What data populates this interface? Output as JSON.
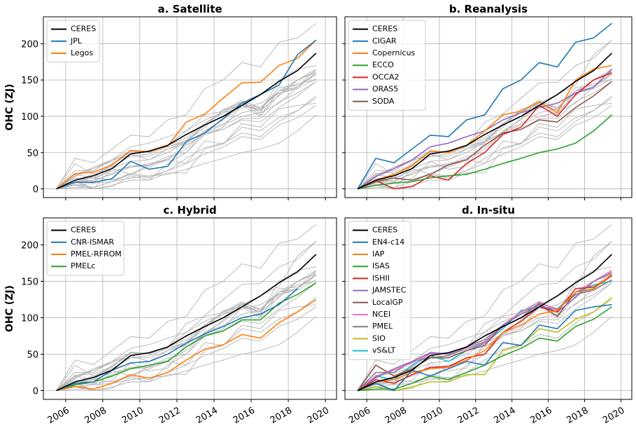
{
  "chart_data": [
    {
      "type": "line",
      "title": "a. Satellite",
      "ylabel": "OHC (ZJ)",
      "show_ytick_labels": true,
      "show_xtick_labels": false,
      "x": [
        2005.5,
        2006.5,
        2007.5,
        2008.5,
        2009.5,
        2010.5,
        2011.5,
        2012.5,
        2013.5,
        2014.5,
        2015.5,
        2016.5,
        2017.5,
        2018.5,
        2019.5
      ],
      "xlim": [
        2004.8,
        2020.6
      ],
      "ylim": [
        -12,
        237
      ],
      "xticks": [
        2006,
        2008,
        2010,
        2012,
        2014,
        2016,
        2018,
        2020
      ],
      "yticks": [
        0,
        50,
        100,
        150,
        200
      ],
      "grid": true,
      "legend": "upper left",
      "context_color": "#b4b4b4",
      "series": [
        {
          "name": "CERES",
          "color": "#000000",
          "values": [
            0,
            12,
            18,
            28,
            48,
            52,
            60,
            75,
            88,
            100,
            115,
            130,
            148,
            163,
            187
          ]
        },
        {
          "name": "JPL",
          "color": "#1f77b4",
          "values": [
            0,
            9,
            9,
            14,
            38,
            27,
            31,
            65,
            77,
            97,
            118,
            130,
            143,
            185,
            205
          ]
        },
        {
          "name": "Legos",
          "color": "#ff7f0e",
          "values": [
            0,
            21,
            23,
            33,
            53,
            51,
            59,
            92,
            103,
            125,
            146,
            147,
            170,
            180,
            205
          ]
        }
      ]
    },
    {
      "type": "line",
      "title": "b. Reanalysis",
      "show_ytick_labels": false,
      "show_xtick_labels": false,
      "x": [
        2005.5,
        2006.5,
        2007.5,
        2008.5,
        2009.5,
        2010.5,
        2011.5,
        2012.5,
        2013.5,
        2014.5,
        2015.5,
        2016.5,
        2017.5,
        2018.5,
        2019.5
      ],
      "xlim": [
        2004.8,
        2020.6
      ],
      "ylim": [
        -12,
        237
      ],
      "xticks": [
        2006,
        2008,
        2010,
        2012,
        2014,
        2016,
        2018,
        2020
      ],
      "yticks": [
        0,
        50,
        100,
        150,
        200
      ],
      "grid": true,
      "legend": "upper left",
      "context_color": "#b4b4b4",
      "series": [
        {
          "name": "CERES",
          "color": "#000000",
          "values": [
            0,
            12,
            18,
            28,
            48,
            52,
            60,
            75,
            88,
            100,
            115,
            130,
            148,
            163,
            187
          ]
        },
        {
          "name": "CIGAR",
          "color": "#1f77b4",
          "values": [
            0,
            42,
            36,
            55,
            74,
            72,
            95,
            102,
            138,
            150,
            174,
            168,
            202,
            208,
            228
          ]
        },
        {
          "name": "Copernicus",
          "color": "#ff7f0e",
          "values": [
            0,
            12,
            20,
            32,
            52,
            50,
            60,
            80,
            102,
            107,
            120,
            105,
            150,
            165,
            170
          ]
        },
        {
          "name": "ECCO",
          "color": "#2ca02c",
          "values": [
            0,
            5,
            8,
            10,
            15,
            18,
            20,
            27,
            35,
            42,
            50,
            55,
            63,
            80,
            102
          ]
        },
        {
          "name": "OCCA2",
          "color": "#d62728",
          "values": [
            0,
            12,
            0,
            3,
            18,
            12,
            35,
            50,
            75,
            85,
            115,
            100,
            130,
            150,
            160
          ]
        },
        {
          "name": "ORAS5",
          "color": "#9467bd",
          "values": [
            0,
            17,
            28,
            40,
            58,
            63,
            72,
            80,
            95,
            105,
            112,
            118,
            132,
            140,
            165
          ]
        },
        {
          "name": "SODA",
          "color": "#8c564b",
          "values": [
            0,
            10,
            15,
            12,
            20,
            33,
            40,
            60,
            77,
            82,
            95,
            92,
            112,
            128,
            148
          ]
        }
      ]
    },
    {
      "type": "line",
      "title": "c. Hybrid",
      "ylabel": "OHC (ZJ)",
      "show_ytick_labels": true,
      "show_xtick_labels": true,
      "x": [
        2005.5,
        2006.5,
        2007.5,
        2008.5,
        2009.5,
        2010.5,
        2011.5,
        2012.5,
        2013.5,
        2014.5,
        2015.5,
        2016.5,
        2017.5,
        2018.5,
        2019.5
      ],
      "xlim": [
        2004.8,
        2020.6
      ],
      "ylim": [
        -12,
        237
      ],
      "xticks": [
        2006,
        2008,
        2010,
        2012,
        2014,
        2016,
        2018,
        2020
      ],
      "yticks": [
        0,
        50,
        100,
        150,
        200
      ],
      "grid": true,
      "legend": "upper left",
      "context_color": "#b4b4b4",
      "series": [
        {
          "name": "CERES",
          "color": "#000000",
          "values": [
            0,
            12,
            18,
            28,
            48,
            52,
            60,
            75,
            88,
            100,
            115,
            130,
            148,
            163,
            187
          ]
        },
        {
          "name": "CNR-ISMAR",
          "color": "#1f77b4",
          "values": [
            0,
            10,
            12,
            28,
            38,
            40,
            50,
            65,
            78,
            88,
            100,
            105,
            118,
            140,
            null
          ]
        },
        {
          "name": "PMEL-RFROM",
          "color": "#ff7f0e",
          "values": [
            0,
            6,
            2,
            10,
            22,
            17,
            25,
            42,
            57,
            63,
            77,
            72,
            93,
            108,
            125
          ]
        },
        {
          "name": "PMELc",
          "color": "#2ca02c",
          "values": [
            0,
            8,
            12,
            20,
            30,
            35,
            40,
            60,
            75,
            82,
            97,
            97,
            120,
            132,
            148
          ]
        }
      ]
    },
    {
      "type": "line",
      "title": "d. In-situ",
      "show_ytick_labels": false,
      "show_xtick_labels": true,
      "x": [
        2005.5,
        2006.5,
        2007.5,
        2008.5,
        2009.5,
        2010.5,
        2011.5,
        2012.5,
        2013.5,
        2014.5,
        2015.5,
        2016.5,
        2017.5,
        2018.5,
        2019.5
      ],
      "xlim": [
        2004.8,
        2020.6
      ],
      "ylim": [
        -12,
        237
      ],
      "xticks": [
        2006,
        2008,
        2010,
        2012,
        2014,
        2016,
        2018,
        2020
      ],
      "yticks": [
        0,
        50,
        100,
        150,
        200
      ],
      "grid": true,
      "legend": "upper left",
      "context_color": "#b4b4b4",
      "series": [
        {
          "name": "CERES",
          "color": "#000000",
          "values": [
            0,
            12,
            18,
            28,
            48,
            52,
            60,
            75,
            88,
            100,
            115,
            130,
            148,
            163,
            187
          ]
        },
        {
          "name": "EN4-c14",
          "color": "#1f77b4",
          "values": [
            0,
            10,
            0,
            28,
            20,
            30,
            40,
            35,
            66,
            62,
            90,
            85,
            110,
            115,
            118
          ]
        },
        {
          "name": "IAP",
          "color": "#ff7f0e",
          "values": [
            0,
            12,
            15,
            25,
            30,
            32,
            42,
            55,
            80,
            90,
            105,
            110,
            135,
            140,
            160
          ]
        },
        {
          "name": "ISAS",
          "color": "#2ca02c",
          "values": [
            0,
            2,
            2,
            10,
            20,
            15,
            25,
            35,
            48,
            58,
            72,
            68,
            88,
            98,
            115
          ]
        },
        {
          "name": "ISHII",
          "color": "#d62728",
          "values": [
            0,
            15,
            10,
            22,
            32,
            33,
            45,
            50,
            80,
            95,
            115,
            108,
            140,
            142,
            158
          ]
        },
        {
          "name": "JAMSTEC",
          "color": "#9467bd",
          "values": [
            0,
            18,
            30,
            40,
            52,
            50,
            60,
            70,
            90,
            105,
            118,
            108,
            128,
            150,
            162
          ]
        },
        {
          "name": "LocalGP",
          "color": "#8c564b",
          "values": [
            0,
            35,
            20,
            30,
            45,
            45,
            55,
            62,
            90,
            105,
            118,
            102,
            135,
            140,
            158
          ]
        },
        {
          "name": "NCEI",
          "color": "#e377c2",
          "values": [
            0,
            20,
            28,
            38,
            50,
            52,
            58,
            65,
            90,
            108,
            122,
            110,
            135,
            150,
            165
          ]
        },
        {
          "name": "PMEL",
          "color": "#7f7f7f",
          "values": [
            0,
            25,
            25,
            40,
            45,
            48,
            58,
            67,
            88,
            100,
            120,
            112,
            132,
            138,
            152
          ]
        },
        {
          "name": "SIO",
          "color": "#bcbd22",
          "values": [
            0,
            5,
            0,
            5,
            12,
            12,
            22,
            22,
            55,
            62,
            85,
            80,
            98,
            108,
            128
          ]
        },
        {
          "name": "vS&LT",
          "color": "#17becf",
          "values": [
            0,
            20,
            15,
            35,
            48,
            40,
            55,
            65,
            85,
            110,
            115,
            112,
            135,
            145,
            150
          ]
        }
      ]
    }
  ]
}
